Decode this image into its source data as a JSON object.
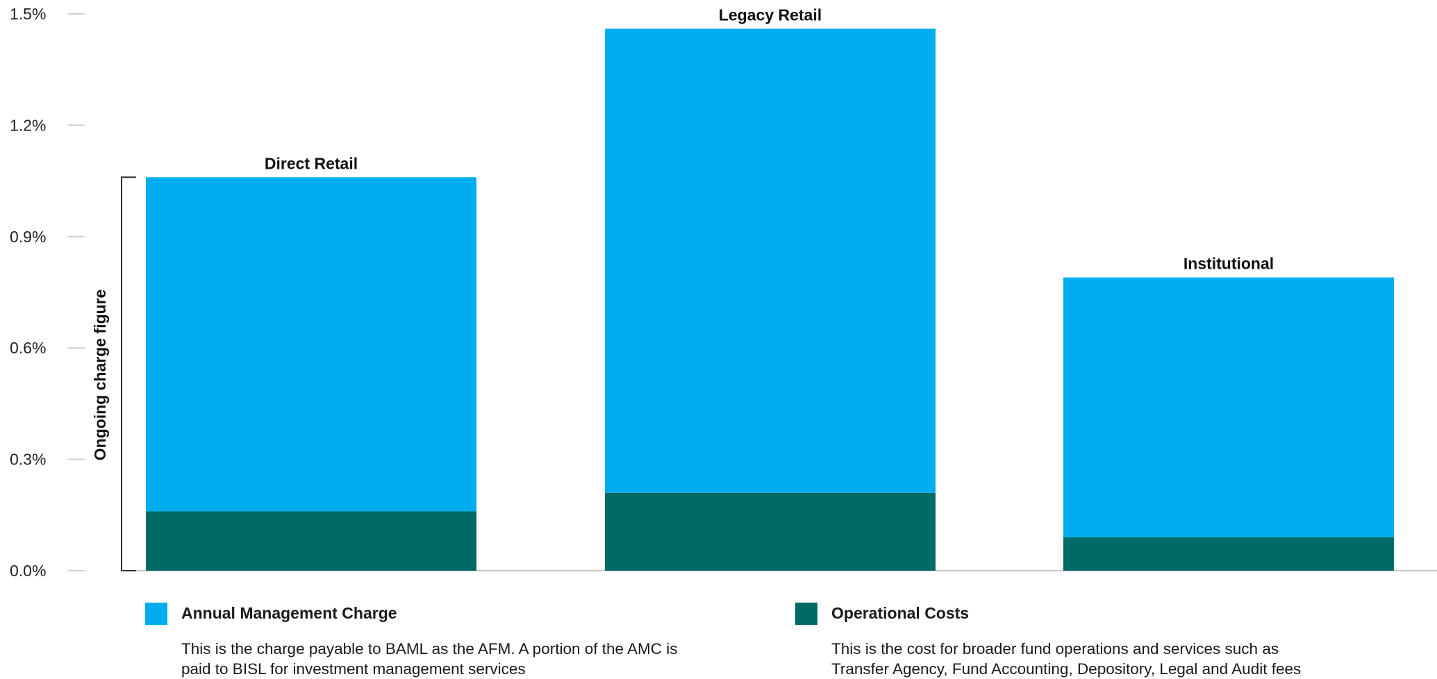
{
  "chart_data": {
    "type": "bar",
    "stacked": true,
    "categories": [
      "Direct Retail",
      "Legacy Retail",
      "Institutional"
    ],
    "series": [
      {
        "name": "Operational Costs",
        "values": [
          0.16,
          0.21,
          0.09
        ],
        "color": "#006A66"
      },
      {
        "name": "Annual Management Charge",
        "values": [
          0.9,
          1.25,
          0.7
        ],
        "color": "#00AEEF"
      }
    ],
    "totals": [
      1.06,
      1.46,
      0.79
    ],
    "ylabel": "Ongoing charge figure",
    "ylim": [
      0,
      1.5
    ],
    "yticks": [
      "0.0%",
      "0.3%",
      "0.6%",
      "0.9%",
      "1.2%",
      "1.5%"
    ],
    "ytick_values": [
      0,
      0.3,
      0.6,
      0.9,
      1.2,
      1.5
    ],
    "grid": false,
    "legend_placement": "bottom"
  },
  "legend": {
    "items": [
      {
        "name": "Annual Management Charge",
        "color": "#00AEEF",
        "description_lines": [
          "This is the charge payable to BAML as the AFM. A portion of the AMC is",
          "paid to BISL for investment management services"
        ]
      },
      {
        "name": "Operational Costs",
        "color": "#006A66",
        "description_lines": [
          "This is the cost for broader fund operations and services such as",
          "Transfer Agency, Fund Accounting, Depository, Legal and Audit fees"
        ]
      }
    ]
  }
}
